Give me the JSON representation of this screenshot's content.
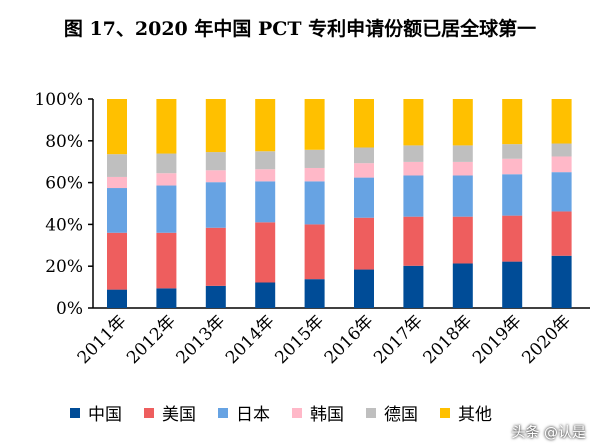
{
  "chart_data": {
    "type": "bar",
    "stacked": true,
    "title": "图 17、2020 年中国 PCT 专利申请份额已居全球第一",
    "categories": [
      "2011年",
      "2012年",
      "2013年",
      "2014年",
      "2015年",
      "2016年",
      "2017年",
      "2018年",
      "2019年",
      "2020年"
    ],
    "series": [
      {
        "name": "中国",
        "color": "#004C97",
        "values": [
          8.8,
          9.4,
          10.6,
          12.2,
          13.8,
          18.4,
          20.2,
          21.3,
          22.2,
          25.0
        ]
      },
      {
        "name": "美国",
        "color": "#EE5E5E",
        "values": [
          27.2,
          26.6,
          27.8,
          28.8,
          26.2,
          24.8,
          23.5,
          22.4,
          22.0,
          21.2
        ]
      },
      {
        "name": "日本",
        "color": "#67A3E3",
        "values": [
          21.4,
          22.6,
          21.8,
          19.6,
          20.6,
          19.2,
          19.7,
          19.7,
          19.8,
          18.8
        ]
      },
      {
        "name": "韩国",
        "color": "#FFB8C8",
        "values": [
          5.3,
          5.9,
          5.7,
          5.8,
          6.4,
          6.9,
          6.5,
          6.5,
          7.4,
          7.5
        ]
      },
      {
        "name": "德国",
        "color": "#BFBFBF",
        "values": [
          10.9,
          9.4,
          8.7,
          8.6,
          8.7,
          7.5,
          7.9,
          7.9,
          7.0,
          6.2
        ]
      },
      {
        "name": "其他",
        "color": "#FFC000",
        "values": [
          26.4,
          26.1,
          25.4,
          25.0,
          24.3,
          23.2,
          22.2,
          22.2,
          21.6,
          21.3
        ]
      }
    ],
    "yticks": [
      "0%",
      "20%",
      "40%",
      "60%",
      "80%",
      "100%"
    ],
    "ylim": [
      0,
      100
    ],
    "grid": false,
    "legend": "bottom"
  },
  "watermark": "头条 @认是"
}
